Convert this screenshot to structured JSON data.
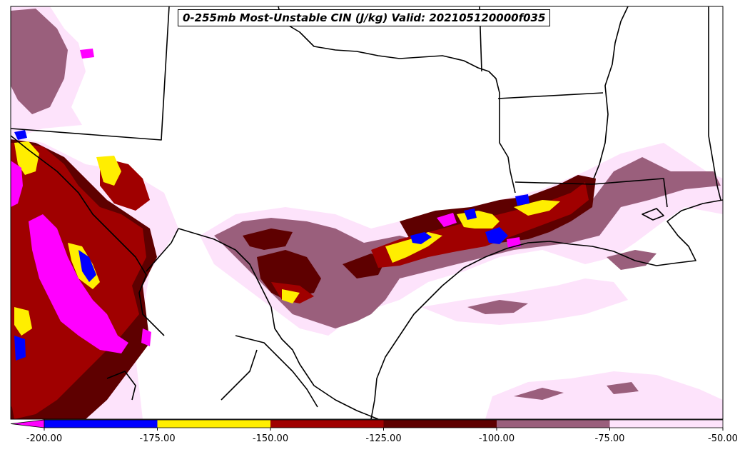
{
  "title": "0-255mb Most-Unstable CIN (J/kg) Valid: 202105120000f035",
  "colorbar": {
    "ticks": [
      "-200.00",
      "-175.00",
      "-150.00",
      "-125.00",
      "-100.00",
      "-75.00",
      "-50.00"
    ],
    "bins": [
      {
        "from": -200,
        "to": -175,
        "color": "#0000ff"
      },
      {
        "from": -175,
        "to": -150,
        "color": "#ffee00"
      },
      {
        "from": -150,
        "to": -125,
        "color": "#a00000"
      },
      {
        "from": -125,
        "to": -100,
        "color": "#5e0000"
      },
      {
        "from": -100,
        "to": -75,
        "color": "#9a5f7c"
      },
      {
        "from": -75,
        "to": -50,
        "color": "#fde3fb"
      }
    ],
    "under_color": "#ff00ff"
  },
  "colors": {
    "magenta": "#ff00ff",
    "blue": "#0000ff",
    "yellow": "#ffee00",
    "red": "#a00000",
    "darkred": "#5e0000",
    "mauve": "#9a5f7c",
    "pink": "#fde3fb",
    "border": "#000000"
  }
}
